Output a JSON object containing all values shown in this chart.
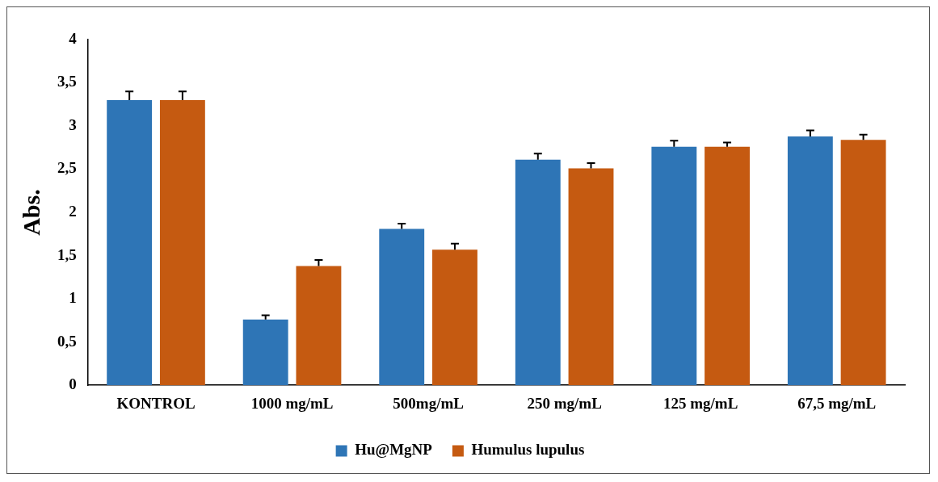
{
  "chart_data": {
    "type": "bar",
    "ylabel": "Abs.",
    "categories": [
      "KONTROL",
      "1000 mg/mL",
      "500mg/mL",
      "250 mg/mL",
      "125 mg/mL",
      "67,5 mg/mL"
    ],
    "series": [
      {
        "name": "Hu@MgNP",
        "color": "#2e75b6",
        "values": [
          3.3,
          0.76,
          1.81,
          2.61,
          2.76,
          2.88
        ],
        "errors": [
          [
            3.3,
            3.4
          ],
          [
            0.76,
            0.81
          ],
          [
            1.81,
            1.87
          ],
          [
            2.61,
            2.68
          ],
          [
            2.76,
            2.83
          ],
          [
            2.88,
            2.95
          ]
        ]
      },
      {
        "name": "Humulus lupulus",
        "color": "#c55a11",
        "values": [
          3.3,
          1.38,
          1.57,
          2.51,
          2.76,
          2.84
        ],
        "errors": [
          [
            3.3,
            3.4
          ],
          [
            1.38,
            1.45
          ],
          [
            1.57,
            1.64
          ],
          [
            2.51,
            2.57
          ],
          [
            2.76,
            2.81
          ],
          [
            2.84,
            2.9
          ]
        ]
      }
    ],
    "ylim": [
      0,
      4
    ],
    "yticks": [
      0,
      {
        "value": 0.5,
        "label": "0,5"
      },
      1,
      {
        "value": 1.5,
        "label": "1,5"
      },
      2,
      {
        "value": 2.5,
        "label": "2,5"
      },
      3,
      {
        "value": 3.5,
        "label": "3,5"
      },
      4
    ],
    "grid": false,
    "legend": "bottom"
  }
}
